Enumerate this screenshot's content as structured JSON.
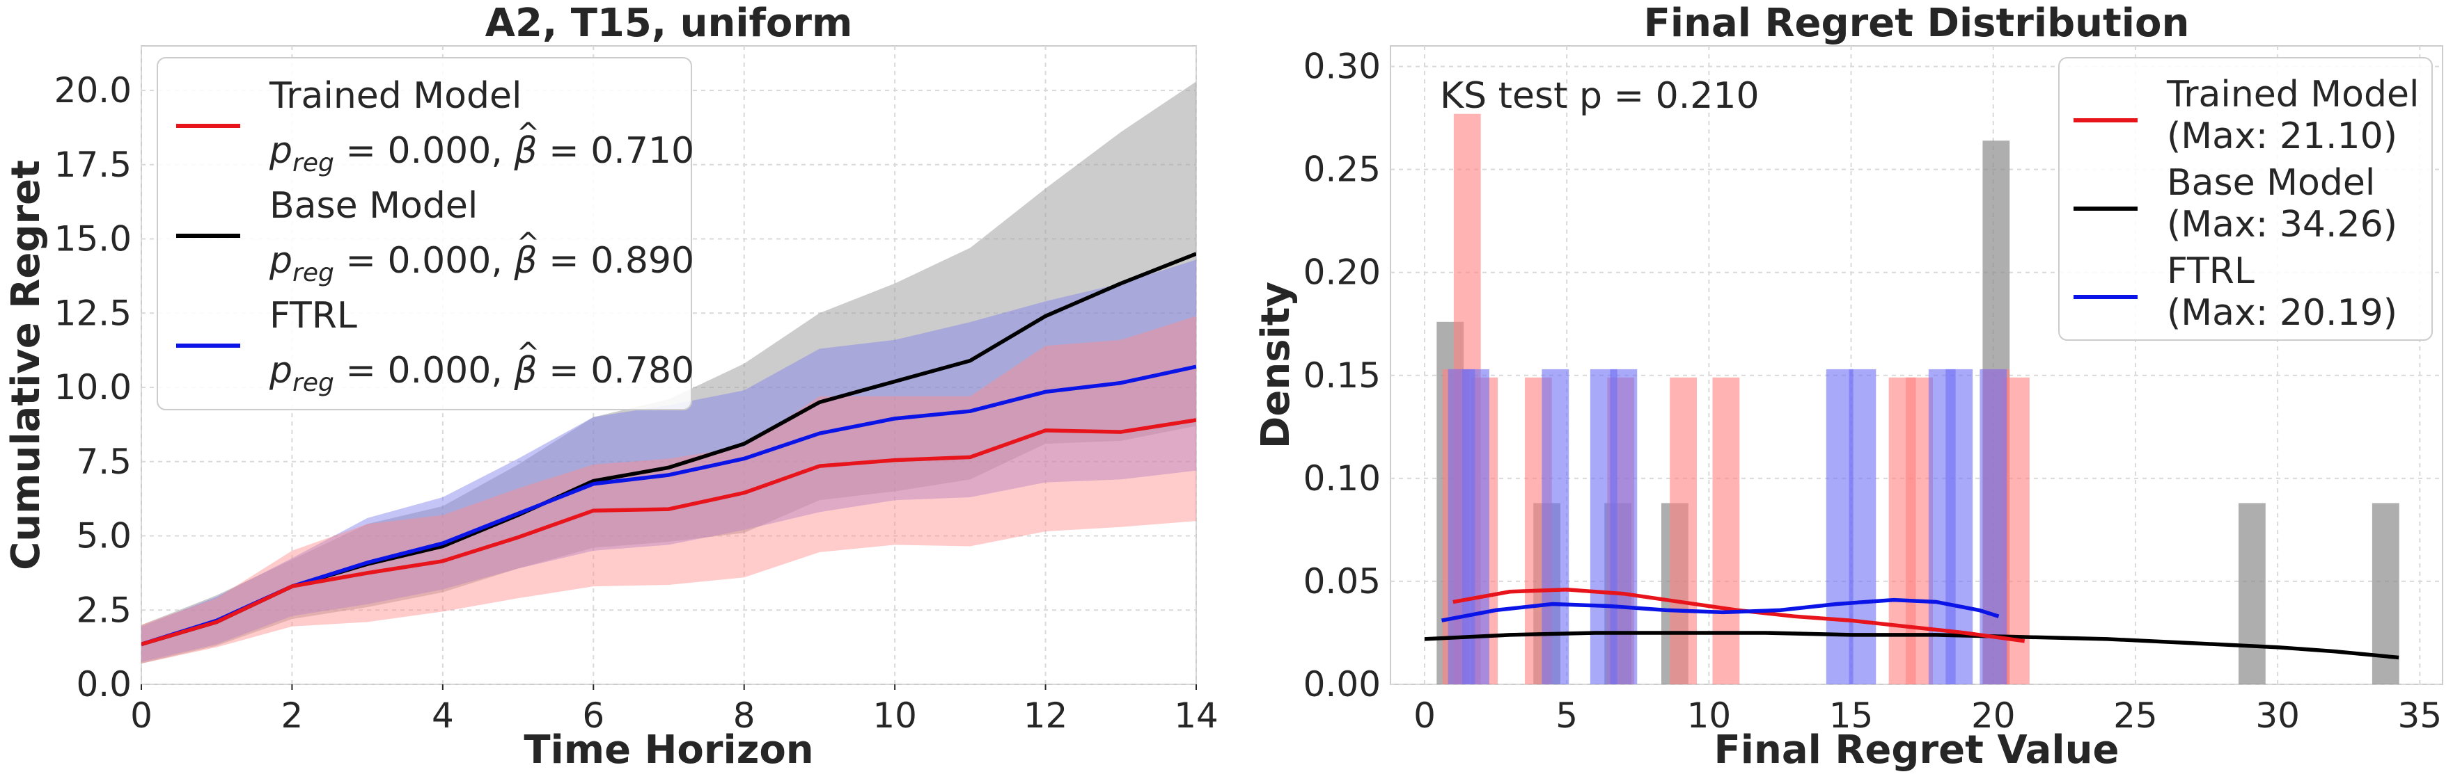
{
  "chart_data": [
    {
      "type": "line",
      "title": "A2, T15, uniform",
      "xlabel": "Time Horizon",
      "ylabel": "Cumulative Regret",
      "xlim": [
        0,
        14
      ],
      "ylim": [
        0,
        21.5
      ],
      "xticks": [
        "0",
        "2",
        "4",
        "6",
        "8",
        "10",
        "12",
        "14"
      ],
      "yticks": [
        "0.0",
        "2.5",
        "5.0",
        "7.5",
        "10.0",
        "12.5",
        "15.0",
        "17.5",
        "20.0"
      ],
      "x": [
        0,
        1,
        2,
        3,
        4,
        5,
        6,
        7,
        8,
        9,
        10,
        11,
        12,
        13,
        14
      ],
      "grid": true,
      "legend_position": "top-left",
      "series": [
        {
          "name": "Trained Model",
          "stat_prefix": "p",
          "stat_sub": "reg",
          "stat_text": " = 0.000, ",
          "beta_symbol": "β",
          "beta_hat": "^",
          "beta_text": " = 0.710",
          "color": "#e8141b",
          "band_color": "#ff8c8c",
          "mean": [
            1.35,
            2.1,
            3.3,
            3.75,
            4.15,
            4.95,
            5.85,
            5.9,
            6.45,
            7.35,
            7.55,
            7.65,
            8.55,
            8.5,
            8.9
          ],
          "upper": [
            2.0,
            2.9,
            4.5,
            5.4,
            5.7,
            6.6,
            7.4,
            7.6,
            8.0,
            9.7,
            9.7,
            9.7,
            11.4,
            11.6,
            12.4
          ],
          "lower": [
            0.7,
            1.25,
            1.95,
            2.1,
            2.45,
            2.9,
            3.3,
            3.35,
            3.6,
            4.45,
            4.7,
            4.65,
            5.15,
            5.3,
            5.5
          ]
        },
        {
          "name": "Base Model",
          "stat_prefix": "p",
          "stat_sub": "reg",
          "stat_text": " = 0.000, ",
          "beta_symbol": "β",
          "beta_hat": "^",
          "beta_text": " = 0.890",
          "color": "#000000",
          "band_color": "#a3a3a3",
          "mean": [
            1.35,
            2.1,
            3.3,
            4.05,
            4.65,
            5.7,
            6.85,
            7.3,
            8.1,
            9.5,
            10.2,
            10.9,
            12.4,
            13.5,
            14.5
          ],
          "upper": [
            2.0,
            3.0,
            4.2,
            5.4,
            6.0,
            7.4,
            9.0,
            9.6,
            10.8,
            12.5,
            13.5,
            14.7,
            16.7,
            18.6,
            20.3
          ],
          "lower": [
            0.7,
            1.3,
            2.2,
            2.6,
            3.1,
            3.9,
            4.6,
            4.8,
            5.1,
            6.2,
            6.5,
            6.9,
            8.1,
            8.2,
            8.7
          ]
        },
        {
          "name": "FTRL",
          "stat_prefix": "p",
          "stat_sub": "reg",
          "stat_text": " = 0.000, ",
          "beta_symbol": "β",
          "beta_hat": "^",
          "beta_text": " = 0.780",
          "color": "#0a14e6",
          "band_color": "#7d7deb",
          "mean": [
            1.35,
            2.15,
            3.3,
            4.1,
            4.75,
            5.75,
            6.75,
            7.05,
            7.6,
            8.45,
            8.95,
            9.2,
            9.85,
            10.15,
            10.7
          ],
          "upper": [
            1.95,
            2.95,
            4.25,
            5.6,
            6.3,
            7.6,
            9.0,
            9.4,
            9.9,
            11.3,
            11.6,
            12.2,
            12.9,
            13.5,
            14.3
          ],
          "lower": [
            0.75,
            1.35,
            2.3,
            2.7,
            3.2,
            3.9,
            4.5,
            4.7,
            5.2,
            5.8,
            6.2,
            6.3,
            6.8,
            6.9,
            7.2
          ]
        }
      ]
    },
    {
      "type": "histogram",
      "title": "Final Regret Distribution",
      "xlabel": "Final Regret Value",
      "ylabel": "Density",
      "xlim": [
        -1.2,
        35.8
      ],
      "ylim": [
        0,
        0.31
      ],
      "xticks": [
        "0",
        "5",
        "10",
        "15",
        "20",
        "25",
        "30",
        "35"
      ],
      "xtick_values": [
        0,
        5,
        10,
        15,
        20,
        25,
        30,
        35
      ],
      "yticks": [
        "0.00",
        "0.05",
        "0.10",
        "0.15",
        "0.20",
        "0.25",
        "0.30"
      ],
      "ytick_values": [
        0,
        0.05,
        0.1,
        0.15,
        0.2,
        0.25,
        0.3
      ],
      "annotation": "KS test p = 0.210",
      "grid": true,
      "legend_position": "top-right",
      "series": [
        {
          "name": "Trained Model",
          "max_label": "(Max: 21.10)",
          "color": "#e8141b",
          "bar_color": "#ff8080",
          "bars": [
            [
              1.1,
              0.153
            ],
            [
              1.5,
              0.277
            ],
            [
              2.1,
              0.149
            ],
            [
              4.0,
              0.149
            ],
            [
              6.9,
              0.149
            ],
            [
              9.1,
              0.149
            ],
            [
              10.6,
              0.149
            ],
            [
              16.8,
              0.149
            ],
            [
              17.4,
              0.149
            ],
            [
              20.1,
              0.153
            ],
            [
              20.8,
              0.149
            ]
          ],
          "kde_x": [
            1.0,
            3.0,
            5.0,
            7.0,
            9.0,
            11.0,
            13.0,
            15.0,
            17.0,
            19.0,
            21.1
          ],
          "kde_y": [
            0.04,
            0.045,
            0.046,
            0.044,
            0.04,
            0.036,
            0.033,
            0.031,
            0.028,
            0.025,
            0.021
          ]
        },
        {
          "name": "Base Model",
          "max_label": "(Max: 34.26)",
          "color": "#000000",
          "bar_color": "#8c8c8c",
          "bars": [
            [
              0.9,
              0.176
            ],
            [
              4.3,
              0.088
            ],
            [
              6.8,
              0.088
            ],
            [
              8.8,
              0.088
            ],
            [
              20.1,
              0.264
            ],
            [
              29.1,
              0.088
            ],
            [
              33.8,
              0.088
            ]
          ],
          "kde_x": [
            0.0,
            3.0,
            6.0,
            9.0,
            12.0,
            15.0,
            18.0,
            21.0,
            24.0,
            27.0,
            30.0,
            32.0,
            34.26
          ],
          "kde_y": [
            0.022,
            0.024,
            0.025,
            0.025,
            0.025,
            0.024,
            0.024,
            0.023,
            0.022,
            0.02,
            0.018,
            0.016,
            0.013
          ]
        },
        {
          "name": "FTRL",
          "max_label": "(Max: 20.19)",
          "color": "#0a14e6",
          "bar_color": "#7070f5",
          "bars": [
            [
              1.3,
              0.153
            ],
            [
              1.8,
              0.153
            ],
            [
              4.6,
              0.153
            ],
            [
              6.3,
              0.153
            ],
            [
              7.0,
              0.153
            ],
            [
              14.6,
              0.153
            ],
            [
              15.4,
              0.153
            ],
            [
              18.2,
              0.153
            ],
            [
              18.8,
              0.153
            ],
            [
              20.0,
              0.153
            ]
          ],
          "kde_x": [
            0.6,
            2.5,
            4.5,
            6.5,
            8.5,
            10.5,
            12.5,
            14.5,
            16.5,
            18.0,
            19.5,
            20.19
          ],
          "kde_y": [
            0.031,
            0.036,
            0.039,
            0.038,
            0.036,
            0.035,
            0.036,
            0.039,
            0.041,
            0.04,
            0.036,
            0.033
          ]
        }
      ]
    }
  ]
}
